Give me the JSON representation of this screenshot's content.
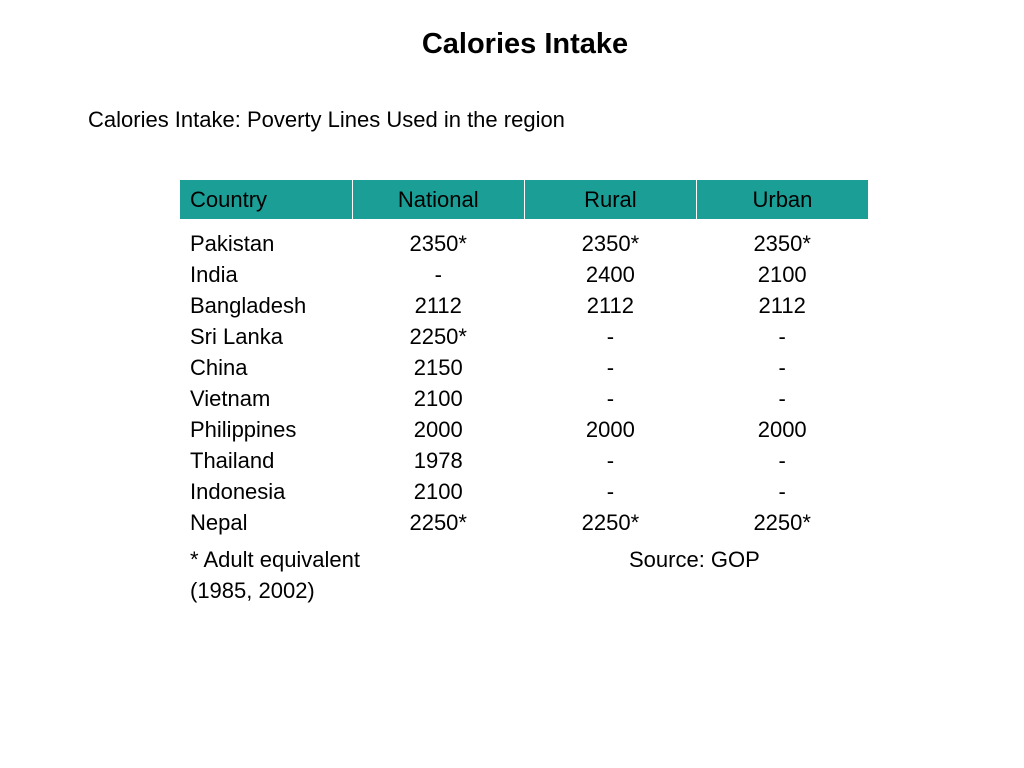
{
  "page": {
    "title": "Calories Intake",
    "subtitle": "Calories Intake: Poverty Lines Used in the region"
  },
  "table": {
    "header_color": "#1a9e95",
    "columns": [
      "Country",
      "National",
      "Rural",
      "Urban"
    ],
    "rows": [
      {
        "country": "Pakistan",
        "national": "2350*",
        "rural": "2350*",
        "urban": "2350*"
      },
      {
        "country": "India",
        "national": "-",
        "rural": "2400",
        "urban": "2100"
      },
      {
        "country": "Bangladesh",
        "national": "2112",
        "rural": "2112",
        "urban": "2112"
      },
      {
        "country": "Sri Lanka",
        "national": "2250*",
        "rural": "-",
        "urban": "-"
      },
      {
        "country": "China",
        "national": "2150",
        "rural": "-",
        "urban": "-"
      },
      {
        "country": "Vietnam",
        "national": "2100",
        "rural": "-",
        "urban": "-"
      },
      {
        "country": "Philippines",
        "national": "2000",
        "rural": "2000",
        "urban": "2000"
      },
      {
        "country": "Thailand",
        "national": "1978",
        "rural": "-",
        "urban": "-"
      },
      {
        "country": "Indonesia",
        "national": "2100",
        "rural": "-",
        "urban": "-"
      },
      {
        "country": "Nepal",
        "national": "2250*",
        "rural": "2250*",
        "urban": "2250*"
      }
    ]
  },
  "notes": {
    "footnote_line1": "* Adult equivalent",
    "footnote_line2": "(1985, 2002)",
    "source": "Source: GOP"
  }
}
